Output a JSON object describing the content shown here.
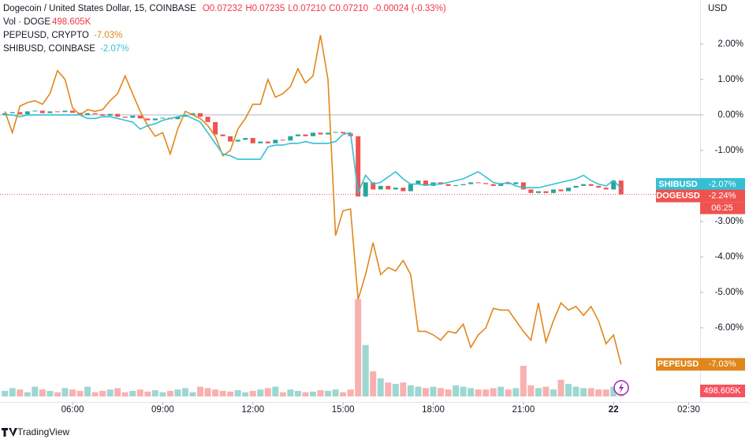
{
  "chart_data": {
    "type": "candlestick",
    "title": "Dogecoin / United States Dollar, 15, COINBASE",
    "ohlc_labels": [
      "O0.07232",
      "H0.07235",
      "L0.07210",
      "C0.07210"
    ],
    "change_label": "-0.00024 (-0.33%)",
    "currency": "USD",
    "watermark": "TradingView",
    "x": [
      3.75,
      4,
      4.25,
      4.5,
      4.75,
      5,
      5.25,
      5.5,
      5.75,
      6,
      6.25,
      6.5,
      6.75,
      7,
      7.25,
      7.5,
      7.75,
      8,
      8.25,
      8.5,
      8.75,
      9,
      9.25,
      9.5,
      9.75,
      10,
      10.25,
      10.5,
      10.75,
      11,
      11.25,
      11.5,
      11.75,
      12,
      12.25,
      12.5,
      12.75,
      13,
      13.25,
      13.5,
      13.75,
      14,
      14.25,
      14.5,
      14.75,
      15,
      15.25,
      15.5,
      15.75,
      16,
      16.25,
      16.5,
      16.75,
      17,
      17.25,
      17.5,
      17.75,
      18,
      18.25,
      18.5,
      18.75,
      19,
      19.25,
      19.5,
      19.75,
      20,
      20.25,
      20.5,
      20.75,
      21,
      21.25,
      21.5,
      21.75,
      22,
      22.25,
      22.5,
      22.75,
      23,
      23.25,
      23.5,
      23.75,
      24,
      24.25
    ],
    "xlim": [
      3.587,
      26.88
    ],
    "xticks": [
      {
        "value": 6,
        "label": "06:00"
      },
      {
        "value": 9,
        "label": "09:00"
      },
      {
        "value": 12,
        "label": "12:00"
      },
      {
        "value": 15,
        "label": "15:00"
      },
      {
        "value": 18,
        "label": "18:00"
      },
      {
        "value": 21,
        "label": "21:00"
      },
      {
        "value": 24,
        "label": "22"
      },
      {
        "value": 26.5,
        "label": "02:30"
      }
    ],
    "ylim": [
      -8.09,
      3.24
    ],
    "yticks": [
      {
        "value": 2,
        "label": "2.00%"
      },
      {
        "value": 1,
        "label": "1.00%"
      },
      {
        "value": 0,
        "label": "0.00%"
      },
      {
        "value": -1,
        "label": "-1.00%"
      },
      {
        "value": -2,
        "label": "-2.00%"
      },
      {
        "value": -3,
        "label": "-3.00%"
      },
      {
        "value": -4,
        "label": "-4.00%"
      },
      {
        "value": -5,
        "label": "-5.00%"
      },
      {
        "value": -6,
        "label": "-6.00%"
      }
    ],
    "zero_line": true,
    "candles": {
      "name": "DOGEUSD",
      "up_color": "#26a69a",
      "down_color": "#ef5350",
      "open": [
        0,
        0.05,
        0.08,
        0.02,
        0.1,
        0.12,
        0.05,
        0.1,
        0.08,
        0.12,
        0.06,
        0.0,
        0.05,
        0.02,
        -0.02,
        0.03,
        -0.05,
        -0.08,
        -0.02,
        -0.1,
        -0.15,
        -0.1,
        -0.08,
        -0.12,
        -0.05,
        0.0,
        0.05,
        -0.05,
        -0.2,
        -0.55,
        -0.6,
        -0.75,
        -0.7,
        -0.65,
        -0.8,
        -0.75,
        -0.8,
        -0.7,
        -0.72,
        -0.6,
        -0.55,
        -0.6,
        -0.5,
        -0.55,
        -0.5,
        -0.48,
        -0.52,
        -0.6,
        -2.3,
        -1.9,
        -2.1,
        -2.0,
        -2.1,
        -2.05,
        -2.15,
        -1.95,
        -1.85,
        -2.0,
        -1.9,
        -1.95,
        -2.0,
        -1.98,
        -1.95,
        -1.9,
        -1.92,
        -1.95,
        -2.0,
        -1.92,
        -1.95,
        -1.9,
        -2.1,
        -2.2,
        -2.15,
        -2.2,
        -2.1,
        -2.15,
        -2.05,
        -2.0,
        -1.95,
        -2.0,
        -2.05,
        -2.1,
        -1.85
      ],
      "close": [
        0.05,
        0.08,
        0.02,
        0.1,
        0.12,
        0.05,
        0.1,
        0.08,
        0.12,
        0.06,
        0.0,
        0.05,
        0.02,
        -0.02,
        0.03,
        -0.05,
        -0.08,
        -0.02,
        -0.1,
        -0.15,
        -0.1,
        -0.08,
        -0.12,
        -0.05,
        0.0,
        0.05,
        -0.05,
        -0.2,
        -0.55,
        -0.6,
        -0.75,
        -0.7,
        -0.65,
        -0.8,
        -0.75,
        -0.8,
        -0.7,
        -0.72,
        -0.6,
        -0.55,
        -0.6,
        -0.5,
        -0.55,
        -0.5,
        -0.48,
        -0.52,
        -0.6,
        -2.3,
        -1.9,
        -2.1,
        -2.0,
        -2.1,
        -2.05,
        -2.15,
        -1.95,
        -1.85,
        -2.0,
        -1.9,
        -1.95,
        -2.0,
        -1.98,
        -1.95,
        -1.9,
        -1.92,
        -1.95,
        -2.0,
        -1.92,
        -1.95,
        -1.9,
        -2.1,
        -2.2,
        -2.15,
        -2.2,
        -2.1,
        -2.15,
        -2.05,
        -2.0,
        -1.95,
        -2.0,
        -2.05,
        -2.1,
        -1.85,
        -2.24
      ],
      "last_label": "-2.24%",
      "countdown": "06:25"
    },
    "series": [
      {
        "name": "PEPEUSD",
        "legend_name": "PEPEUSD, CRYPTO",
        "color": "#e0871c",
        "last_label": "-7.03%",
        "values": [
          0.1,
          -0.5,
          0.25,
          0.35,
          0.4,
          0.3,
          0.6,
          1.25,
          1.0,
          0.2,
          0.0,
          0.15,
          0.1,
          0.15,
          0.4,
          0.6,
          1.1,
          0.6,
          0.1,
          -0.3,
          -0.6,
          -0.5,
          -1.1,
          -0.4,
          0.1,
          0.0,
          -0.1,
          -0.3,
          -0.6,
          -1.15,
          -1.0,
          -0.4,
          -0.1,
          0.3,
          0.3,
          1.0,
          0.5,
          0.6,
          0.8,
          1.3,
          0.9,
          1.1,
          2.25,
          1.0,
          -3.4,
          -2.7,
          -2.65,
          -5.2,
          -4.5,
          -3.6,
          -4.5,
          -4.3,
          -4.4,
          -4.1,
          -4.5,
          -6.1,
          -6.1,
          -6.2,
          -6.35,
          -6.1,
          -6.15,
          -5.9,
          -6.55,
          -6.2,
          -6.0,
          -5.45,
          -5.5,
          -5.5,
          -5.8,
          -6.1,
          -6.35,
          -5.3,
          -6.4,
          -5.8,
          -5.3,
          -5.5,
          -5.4,
          -5.65,
          -5.4,
          -5.8,
          -6.45,
          -6.2,
          -7.03
        ]
      },
      {
        "name": "SHIBUSD",
        "legend_name": "SHIBUSD, COINBASE",
        "color": "#35bfd4",
        "last_label": "-2.07%",
        "values": [
          0,
          0,
          -0.05,
          0,
          0,
          0,
          0,
          0,
          0,
          0,
          0,
          -0.1,
          -0.1,
          -0.05,
          -0.05,
          -0.1,
          -0.15,
          -0.2,
          -0.4,
          -0.3,
          -0.25,
          -0.15,
          -0.1,
          -0.05,
          0.0,
          -0.1,
          -0.2,
          -0.5,
          -0.8,
          -1.1,
          -1.15,
          -1.25,
          -1.25,
          -1.25,
          -1.25,
          -0.9,
          -0.85,
          -0.85,
          -0.8,
          -0.8,
          -0.75,
          -0.8,
          -0.8,
          -0.8,
          -0.75,
          -0.55,
          -0.5,
          -2.2,
          -1.7,
          -1.95,
          -1.9,
          -1.75,
          -1.6,
          -1.8,
          -1.95,
          -1.95,
          -1.98,
          -1.95,
          -1.95,
          -1.9,
          -1.85,
          -1.8,
          -1.7,
          -1.6,
          -1.75,
          -1.9,
          -1.95,
          -1.9,
          -2.0,
          -2.05,
          -2.05,
          -2.05,
          -2.0,
          -1.95,
          -1.9,
          -1.85,
          -1.8,
          -1.7,
          -1.85,
          -1.95,
          -2.0,
          -1.85,
          -2.07
        ]
      }
    ],
    "volume": {
      "name": "Vol · DOGE",
      "ylim": [
        0,
        17000
      ],
      "last_label": "498.605K",
      "values": [
        400,
        600,
        500,
        300,
        700,
        500,
        400,
        300,
        600,
        500,
        400,
        700,
        300,
        400,
        500,
        600,
        300,
        400,
        500,
        350,
        450,
        300,
        400,
        500,
        600,
        300,
        700,
        600,
        500,
        400,
        350,
        450,
        300,
        400,
        500,
        600,
        700,
        300,
        500,
        400,
        300,
        350,
        450,
        400,
        500,
        300,
        500,
        7000,
        3700,
        1800,
        1300,
        1000,
        900,
        1000,
        800,
        700,
        600,
        700,
        600,
        500,
        800,
        700,
        600,
        500,
        500,
        600,
        700,
        500,
        600,
        2200,
        800,
        600,
        700,
        500,
        1200,
        900,
        700,
        600,
        600,
        500,
        500,
        700,
        498.605
      ]
    }
  }
}
